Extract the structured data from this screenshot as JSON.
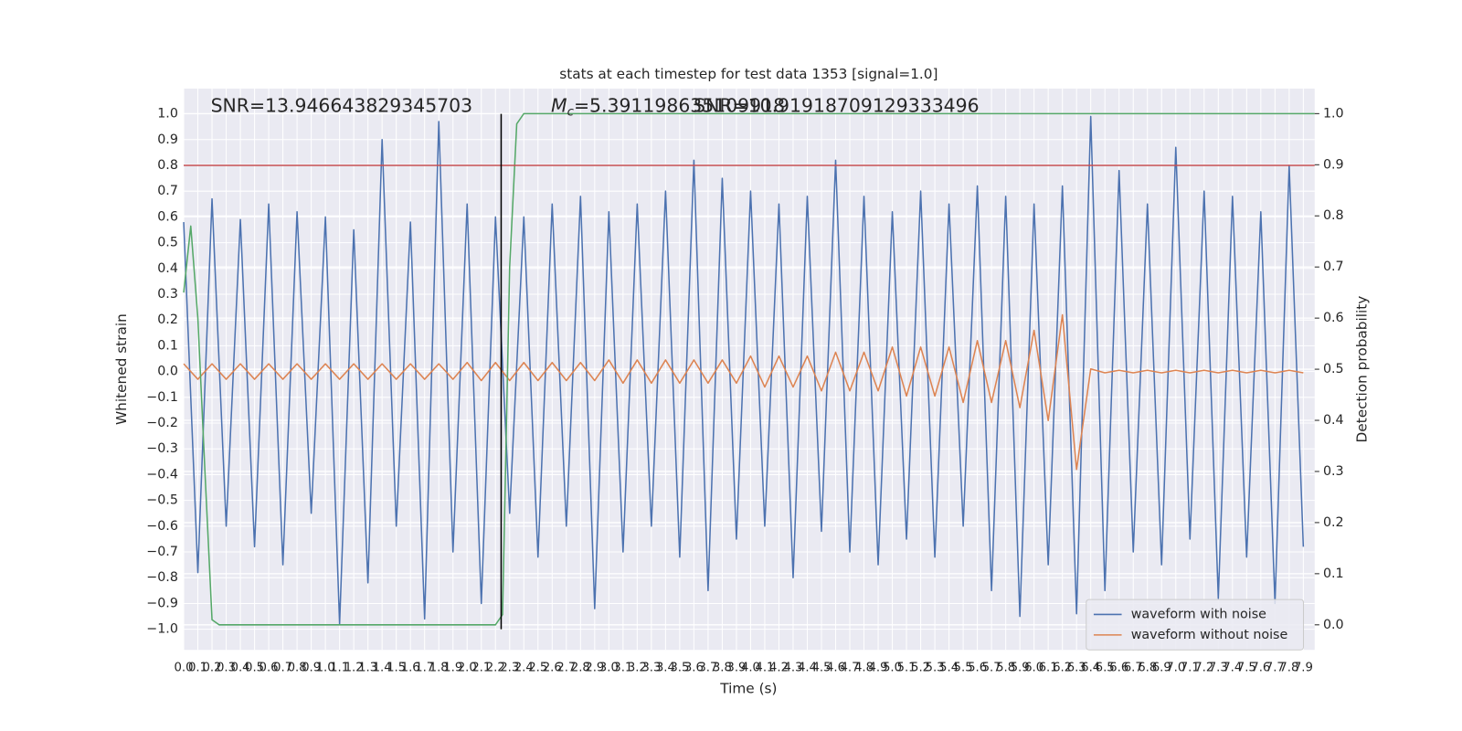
{
  "chart_data": {
    "type": "line",
    "title": "stats at each timestep for test data 1353 [signal=1.0]",
    "xlabel": "Time (s)",
    "ylabel": "Whitened strain",
    "y2label": "Detection probability",
    "annotations": {
      "snr": "SNR=13.946643829345703",
      "mc_symbol": "M",
      "mc_sub": "c",
      "mc_value": "=5.391198635109918",
      "snr2": "SNR=10.91918709129333496"
    },
    "xlim": [
      0,
      7.98
    ],
    "ylim": [
      -1.08,
      1.098
    ],
    "y2lim": [
      -0.049,
      1.049
    ],
    "grid": true,
    "legend": "lower right",
    "xticks": [
      {
        "value": 0,
        "label": "0.0"
      },
      0.1,
      0.2,
      0.3,
      0.4,
      0.5,
      0.6,
      0.7,
      0.8,
      0.9,
      {
        "value": 1,
        "label": "1.0"
      },
      1.1,
      1.2,
      1.3,
      1.4,
      1.5,
      1.6,
      1.7,
      1.8,
      1.9,
      {
        "value": 2,
        "label": "2.0"
      },
      2.1,
      2.2,
      2.3,
      2.4,
      2.5,
      2.6,
      2.7,
      2.8,
      2.9,
      {
        "value": 3,
        "label": "3.0"
      },
      3.1,
      3.2,
      3.3,
      3.4,
      3.5,
      3.6,
      3.7,
      3.8,
      3.9,
      {
        "value": 4,
        "label": "4.0"
      },
      4.1,
      4.2,
      4.3,
      4.4,
      4.5,
      4.6,
      4.7,
      4.8,
      4.9,
      {
        "value": 5,
        "label": "5.0"
      },
      5.1,
      5.2,
      5.3,
      5.4,
      5.5,
      5.6,
      5.7,
      5.8,
      5.9,
      {
        "value": 6,
        "label": "6.0"
      },
      6.1,
      6.2,
      6.3,
      6.4,
      6.5,
      6.6,
      6.7,
      6.8,
      6.9,
      {
        "value": 7,
        "label": "7.0"
      },
      7.1,
      7.2,
      7.3,
      7.4,
      7.5,
      7.6,
      7.7,
      7.8,
      7.9
    ],
    "yticks": [
      {
        "value": -1,
        "label": "−1.0"
      },
      {
        "value": -0.9,
        "label": "−0.9"
      },
      {
        "value": -0.8,
        "label": "−0.8"
      },
      {
        "value": -0.7,
        "label": "−0.7"
      },
      {
        "value": -0.6,
        "label": "−0.6"
      },
      {
        "value": -0.5,
        "label": "−0.5"
      },
      {
        "value": -0.4,
        "label": "−0.4"
      },
      {
        "value": -0.3,
        "label": "−0.3"
      },
      {
        "value": -0.2,
        "label": "−0.2"
      },
      {
        "value": -0.1,
        "label": "−0.1"
      },
      {
        "value": 0,
        "label": "0.0"
      },
      0.1,
      0.2,
      0.3,
      0.4,
      0.5,
      0.6,
      0.7,
      0.8,
      0.9,
      {
        "value": 1,
        "label": "1.0"
      }
    ],
    "y2ticks": [
      {
        "value": 0,
        "label": "0.0"
      },
      0.1,
      0.2,
      0.3,
      0.4,
      0.5,
      0.6,
      0.7,
      0.8,
      0.9,
      {
        "value": 1,
        "label": "1.0"
      }
    ],
    "series": [
      {
        "name": "waveform with noise",
        "color": "#4c72b0",
        "x": [
          0,
          0.1,
          0.2,
          0.3,
          0.4,
          0.5,
          0.6,
          0.7,
          0.8,
          0.9,
          1,
          1.1,
          1.2,
          1.3,
          1.4,
          1.5,
          1.6,
          1.7,
          1.8,
          1.9,
          2,
          2.1,
          2.2,
          2.3,
          2.4,
          2.5,
          2.6,
          2.7,
          2.8,
          2.9,
          3,
          3.1,
          3.2,
          3.3,
          3.4,
          3.5,
          3.6,
          3.7,
          3.8,
          3.9,
          4,
          4.1,
          4.2,
          4.3,
          4.4,
          4.5,
          4.6,
          4.7,
          4.8,
          4.9,
          5,
          5.1,
          5.2,
          5.3,
          5.4,
          5.5,
          5.6,
          5.7,
          5.8,
          5.9,
          6,
          6.1,
          6.2,
          6.3,
          6.4,
          6.5,
          6.6,
          6.7,
          6.8,
          6.9,
          7,
          7.1,
          7.2,
          7.3,
          7.4,
          7.5,
          7.6,
          7.7,
          7.8,
          7.9
        ],
        "values": [
          0.58,
          -0.78,
          0.67,
          -0.6,
          0.59,
          -0.68,
          0.65,
          -0.75,
          0.62,
          -0.55,
          0.6,
          -0.98,
          0.55,
          -0.82,
          0.9,
          -0.6,
          0.58,
          -0.96,
          0.97,
          -0.7,
          0.65,
          -0.9,
          0.6,
          -0.55,
          0.6,
          -0.72,
          0.65,
          -0.6,
          0.68,
          -0.92,
          0.62,
          -0.7,
          0.65,
          -0.6,
          0.7,
          -0.72,
          0.82,
          -0.85,
          0.75,
          -0.65,
          0.7,
          -0.6,
          0.65,
          -0.8,
          0.68,
          -0.62,
          0.82,
          -0.7,
          0.68,
          -0.75,
          0.62,
          -0.65,
          0.7,
          -0.72,
          0.65,
          -0.6,
          0.72,
          -0.85,
          0.68,
          -0.95,
          0.65,
          -0.75,
          0.72,
          -0.94,
          0.99,
          -0.85,
          0.78,
          -0.7,
          0.65,
          -0.75,
          0.87,
          -0.65,
          0.7,
          -0.88,
          0.68,
          -0.72,
          0.62,
          -0.9,
          0.8,
          -0.68
        ]
      },
      {
        "name": "waveform without noise",
        "color": "#dd8452",
        "x": [
          0,
          0.1,
          0.2,
          0.3,
          0.4,
          0.5,
          0.6,
          0.7,
          0.8,
          0.9,
          1,
          1.1,
          1.2,
          1.3,
          1.4,
          1.5,
          1.6,
          1.7,
          1.8,
          1.9,
          2,
          2.1,
          2.2,
          2.3,
          2.4,
          2.5,
          2.6,
          2.7,
          2.8,
          2.9,
          3,
          3.1,
          3.2,
          3.3,
          3.4,
          3.5,
          3.6,
          3.7,
          3.8,
          3.9,
          4,
          4.1,
          4.2,
          4.3,
          4.4,
          4.5,
          4.6,
          4.7,
          4.8,
          4.9,
          5,
          5.1,
          5.2,
          5.3,
          5.4,
          5.5,
          5.6,
          5.7,
          5.8,
          5.9,
          6,
          6.1,
          6.2,
          6.3,
          6.4,
          6.5,
          6.6,
          6.7,
          6.8,
          6.9,
          7,
          7.1,
          7.2,
          7.3,
          7.4,
          7.5,
          7.6,
          7.7,
          7.8,
          7.9
        ],
        "values": [
          0.03,
          -0.03,
          0.03,
          -0.03,
          0.03,
          -0.03,
          0.03,
          -0.03,
          0.03,
          -0.03,
          0.03,
          -0.03,
          0.03,
          -0.03,
          0.03,
          -0.03,
          0.03,
          -0.03,
          0.03,
          -0.03,
          0.035,
          -0.035,
          0.035,
          -0.035,
          0.035,
          -0.035,
          0.035,
          -0.035,
          0.035,
          -0.035,
          0.045,
          -0.045,
          0.045,
          -0.045,
          0.045,
          -0.045,
          0.045,
          -0.045,
          0.045,
          -0.045,
          0.06,
          -0.06,
          0.06,
          -0.06,
          0.06,
          -0.075,
          0.075,
          -0.075,
          0.075,
          -0.075,
          0.095,
          -0.095,
          0.095,
          -0.095,
          0.095,
          -0.12,
          0.12,
          -0.12,
          0.12,
          -0.14,
          0.16,
          -0.19,
          0.22,
          -0.38,
          0.01,
          -0.005,
          0.005,
          -0.005,
          0.005,
          -0.005,
          0.005,
          -0.005,
          0.005,
          -0.005,
          0.005,
          -0.005,
          0.005,
          -0.005,
          0.005,
          -0.005
        ]
      },
      {
        "color": "#55a868",
        "axis": "y2",
        "x": [
          0,
          0.05,
          0.1,
          0.15,
          0.2,
          0.25,
          2.2,
          2.25,
          2.3,
          2.35,
          2.4,
          7.98
        ],
        "values": [
          0.65,
          0.78,
          0.6,
          0.3,
          0.01,
          0,
          0,
          0.02,
          0.7,
          0.98,
          1,
          1
        ]
      }
    ],
    "hlines": [
      {
        "y": 0.8,
        "color": "#c44e52"
      }
    ],
    "vlines": [
      {
        "x": 2.24,
        "color": "#000000"
      }
    ]
  }
}
